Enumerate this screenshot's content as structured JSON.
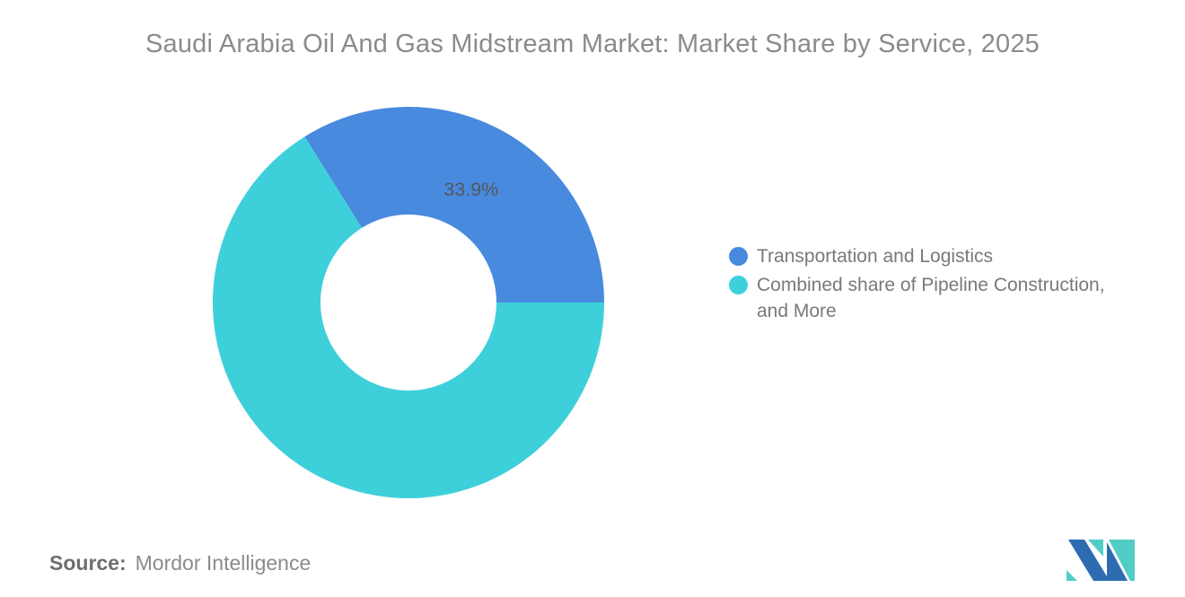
{
  "title": {
    "text": "Saudi Arabia Oil And Gas Midstream Market: Market Share by Service, 2025",
    "color": "#8b8b8b"
  },
  "chart_data": {
    "type": "pie",
    "subtype": "donut",
    "title": "Saudi Arabia Oil And Gas Midstream Market: Market Share by Service, 2025",
    "year": "2025",
    "start_angle_deg": -32.04,
    "inner_radius_ratio": 0.45,
    "legend_position": "right",
    "data_label_color": "#54575b",
    "slices": [
      {
        "label": "Transportation and Logistics",
        "value": 33.9,
        "data_label": "33.9%",
        "color": "#488ade"
      },
      {
        "label": "Combined share of Pipeline Construction, and More",
        "value": 66.1,
        "data_label": "",
        "color": "#3ed0da"
      }
    ]
  },
  "legend": {
    "text_color": "#77797c",
    "items": [
      {
        "label": "Transportation and Logistics",
        "color": "#488ade"
      },
      {
        "label": "Combined share of Pipeline Construction,\nand More",
        "color": "#3ed0da"
      }
    ]
  },
  "source": {
    "label": "Source:",
    "value": "Mordor Intelligence"
  },
  "logo": {
    "name": "mordor-intelligence-logo",
    "teal": "#52cdc5",
    "blue": "#2e6cb2"
  }
}
